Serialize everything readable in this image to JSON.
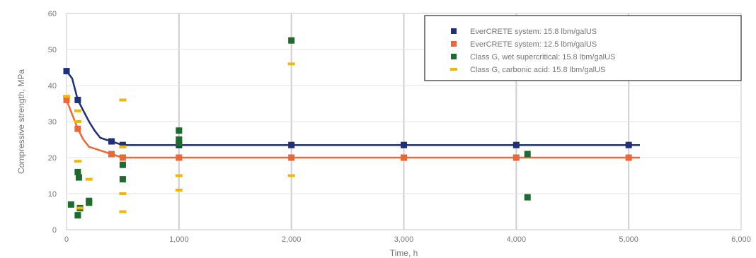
{
  "chart_data": {
    "type": "line",
    "title": "",
    "xlabel": "Time, h",
    "ylabel": "Compressive strength, MPa",
    "xlim": [
      0,
      6000
    ],
    "ylim": [
      0,
      60
    ],
    "x_ticks": [
      0,
      1000,
      2000,
      3000,
      4000,
      5000,
      6000
    ],
    "x_tick_labels": [
      "0",
      "1,000",
      "2,000",
      "3,000",
      "4,000",
      "5,000",
      "6,000"
    ],
    "y_ticks": [
      0,
      10,
      20,
      30,
      40,
      50,
      60
    ],
    "y_tick_labels": [
      "0",
      "10",
      "20",
      "30",
      "40",
      "50",
      "60"
    ],
    "grid": true,
    "legend_position": "top-right",
    "series": [
      {
        "name": "EverCRETE system: 15.8 lbm/galUS",
        "color": "#1f2f7a",
        "marker": "square",
        "line": [
          [
            0,
            44
          ],
          [
            50,
            42
          ],
          [
            100,
            36
          ],
          [
            150,
            33
          ],
          [
            200,
            30
          ],
          [
            250,
            27.5
          ],
          [
            300,
            25.5
          ],
          [
            400,
            24.5
          ],
          [
            500,
            23.5
          ],
          [
            1000,
            23.5
          ],
          [
            2000,
            23.5
          ],
          [
            3000,
            23.5
          ],
          [
            4000,
            23.5
          ],
          [
            5100,
            23.5
          ]
        ],
        "points": [
          [
            0,
            44
          ],
          [
            100,
            36
          ],
          [
            400,
            24.5
          ],
          [
            500,
            23.5
          ],
          [
            1000,
            23.5
          ],
          [
            2000,
            23.5
          ],
          [
            3000,
            23.5
          ],
          [
            4000,
            23.5
          ],
          [
            5000,
            23.5
          ]
        ]
      },
      {
        "name": "EverCRETE system: 12.5 lbm/galUS",
        "color": "#e8683a",
        "marker": "square",
        "line": [
          [
            0,
            36
          ],
          [
            50,
            32
          ],
          [
            100,
            28
          ],
          [
            150,
            25
          ],
          [
            200,
            23
          ],
          [
            300,
            22
          ],
          [
            400,
            21
          ],
          [
            500,
            20
          ],
          [
            1000,
            20
          ],
          [
            2000,
            20
          ],
          [
            3000,
            20
          ],
          [
            4000,
            20
          ],
          [
            5100,
            20
          ]
        ],
        "points": [
          [
            0,
            36
          ],
          [
            100,
            28
          ],
          [
            400,
            21
          ],
          [
            500,
            20
          ],
          [
            1000,
            20
          ],
          [
            2000,
            20
          ],
          [
            3000,
            20
          ],
          [
            4000,
            20
          ],
          [
            5000,
            20
          ]
        ]
      },
      {
        "name": "Class G, wet supercritical: 15.8 lbm/galUS",
        "color": "#1d6b2e",
        "marker": "square",
        "points": [
          [
            40,
            7
          ],
          [
            100,
            4
          ],
          [
            100,
            16
          ],
          [
            110,
            14.5
          ],
          [
            120,
            6
          ],
          [
            200,
            7.5
          ],
          [
            200,
            8
          ],
          [
            500,
            18
          ],
          [
            500,
            14
          ],
          [
            1000,
            27.5
          ],
          [
            1000,
            25
          ],
          [
            1000,
            24
          ],
          [
            2000,
            52.5
          ],
          [
            4100,
            21
          ],
          [
            4100,
            9
          ]
        ]
      },
      {
        "name": "Class G, carbonic acid: 15.8 lbm/galUS",
        "color": "#f2b705",
        "marker": "dash",
        "points": [
          [
            0,
            37
          ],
          [
            100,
            33
          ],
          [
            100,
            30
          ],
          [
            100,
            19
          ],
          [
            200,
            14
          ],
          [
            120,
            6
          ],
          [
            500,
            36
          ],
          [
            500,
            23
          ],
          [
            500,
            10
          ],
          [
            500,
            5
          ],
          [
            1000,
            15
          ],
          [
            1000,
            11
          ],
          [
            2000,
            46
          ],
          [
            2000,
            15
          ]
        ]
      }
    ]
  }
}
